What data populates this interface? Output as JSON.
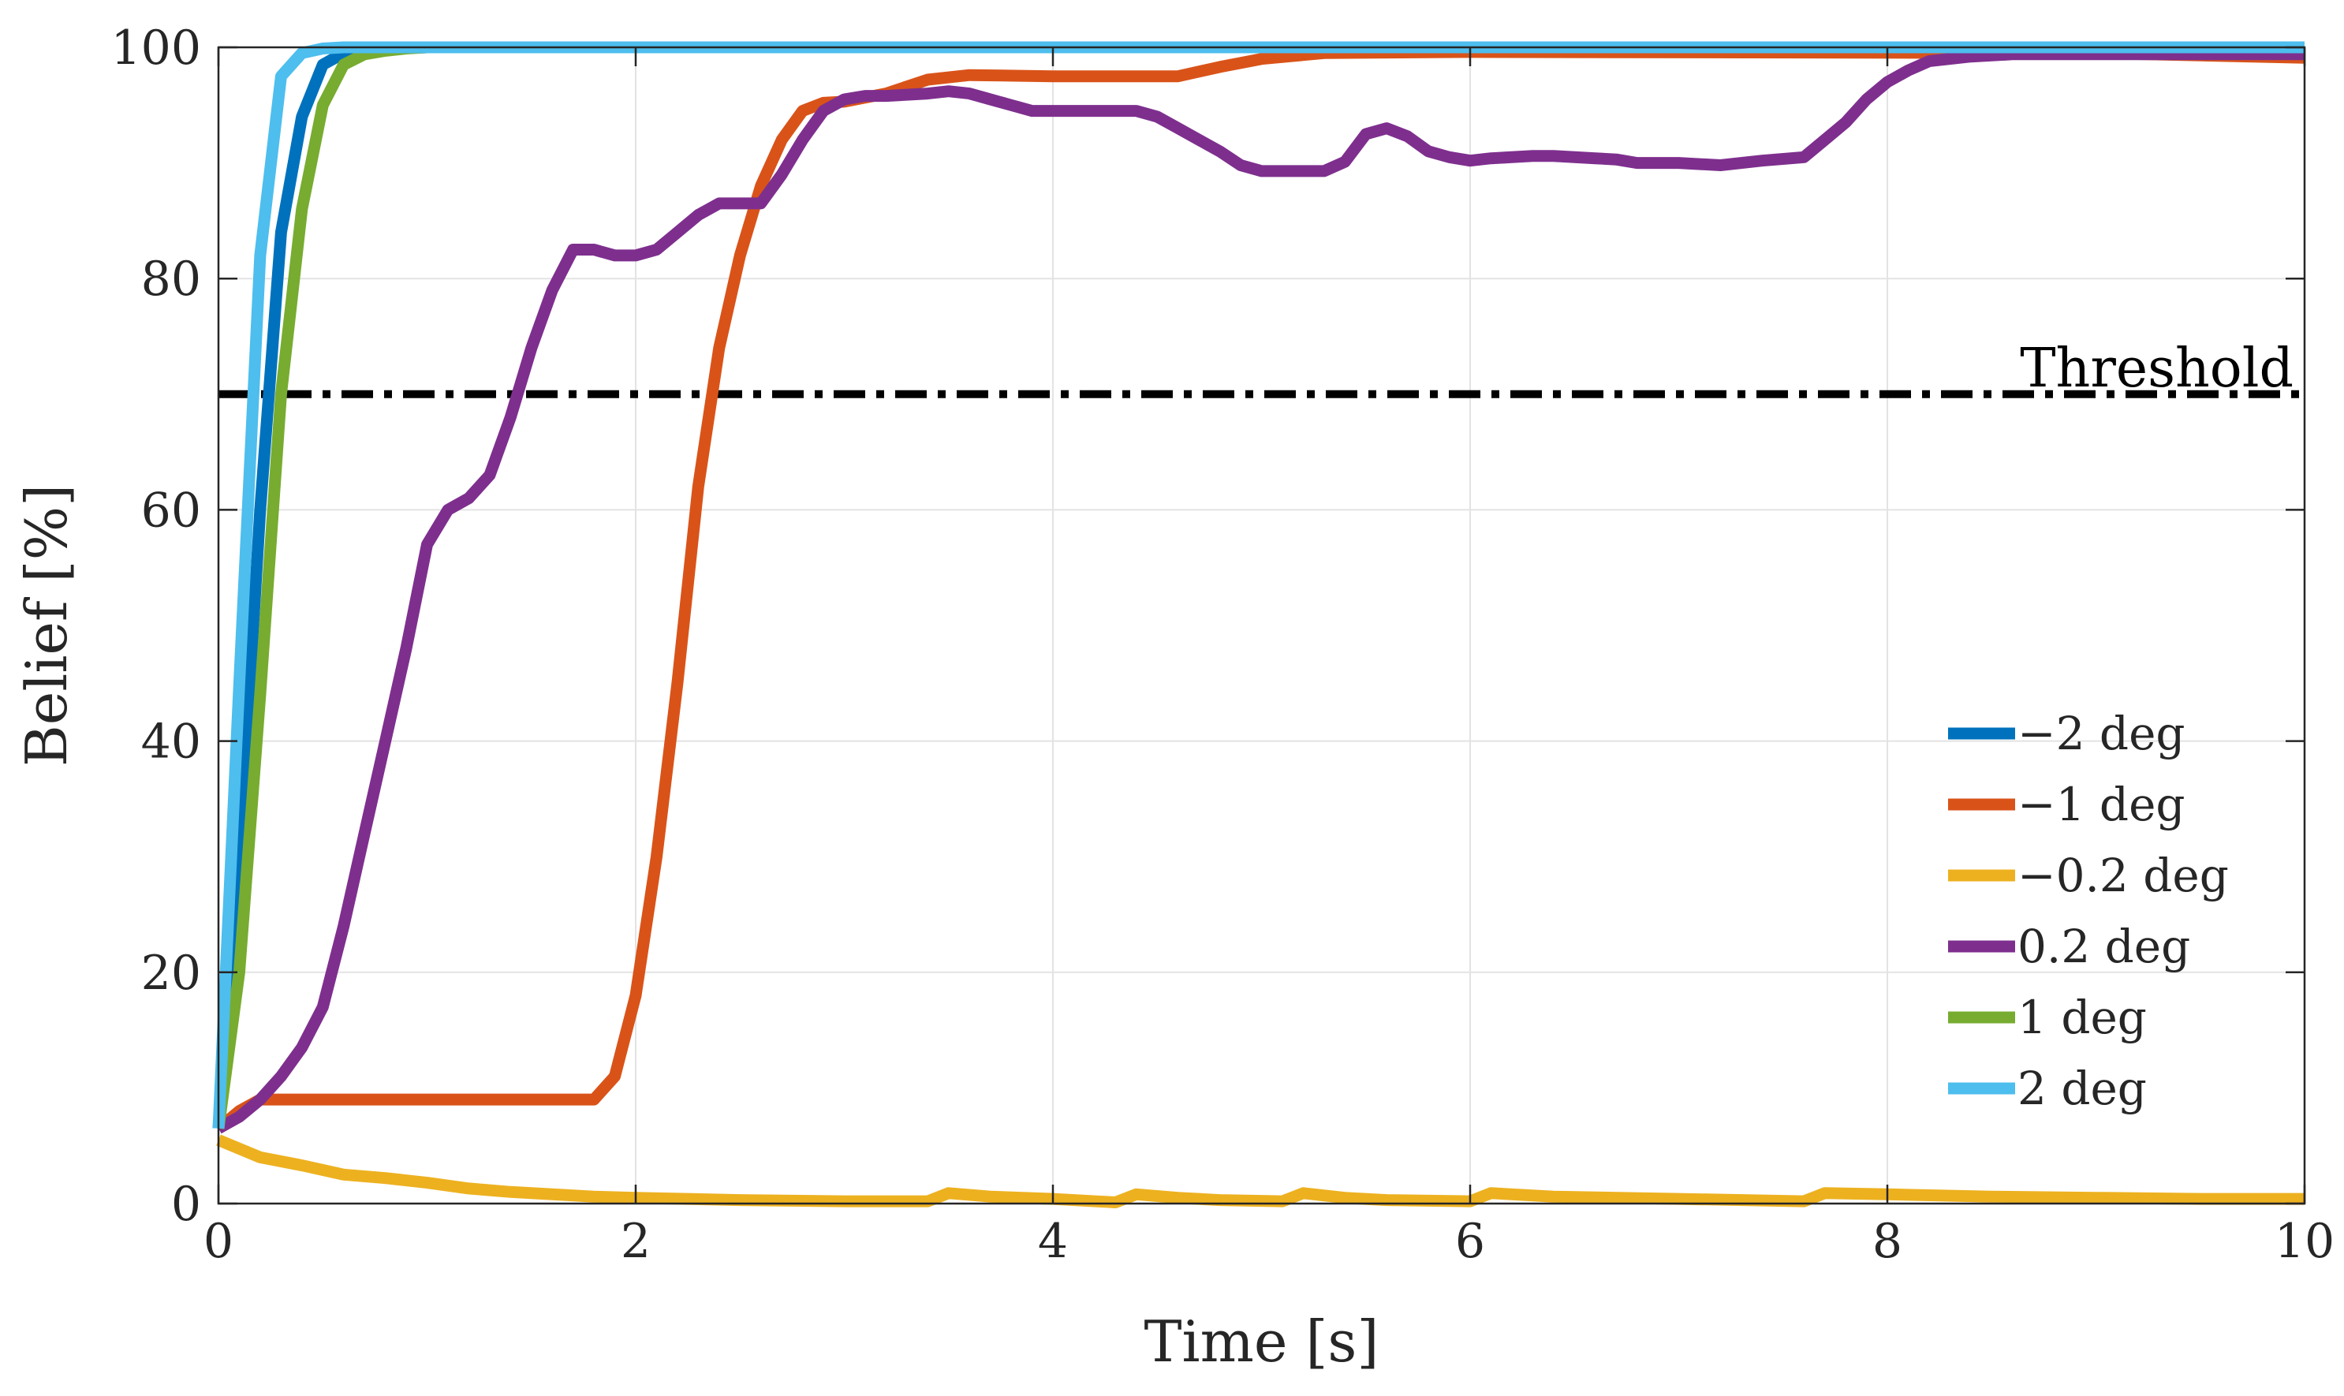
{
  "chart_data": {
    "type": "line",
    "title": "",
    "xlabel": "Time [s]",
    "ylabel": "Belief [%]",
    "xlim": [
      0,
      10
    ],
    "ylim": [
      0,
      100
    ],
    "xticks": [
      0,
      2,
      4,
      6,
      8,
      10
    ],
    "yticks": [
      0,
      20,
      40,
      60,
      80,
      100
    ],
    "grid": true,
    "legend_position": "lower-right",
    "threshold": {
      "value": 70,
      "label": "Threshold",
      "color": "#000000",
      "style": "dash-dot"
    },
    "series": [
      {
        "name": "−2 deg",
        "color": "#0072BD",
        "x": [
          0,
          0.1,
          0.2,
          0.3,
          0.4,
          0.5,
          0.6,
          0.7,
          0.8,
          1.0,
          10
        ],
        "y": [
          6.5,
          30,
          60,
          84,
          94,
          98.5,
          99.5,
          99.8,
          99.9,
          100,
          100
        ]
      },
      {
        "name": "−1 deg",
        "color": "#D95319",
        "x": [
          0,
          0.1,
          0.2,
          0.4,
          1.0,
          1.8,
          1.9,
          2.0,
          2.1,
          2.2,
          2.3,
          2.4,
          2.5,
          2.6,
          2.7,
          2.8,
          2.9,
          3.0,
          3.2,
          3.4,
          3.6,
          4.0,
          4.6,
          4.8,
          5.0,
          5.3,
          6.0,
          9.0,
          10.0
        ],
        "y": [
          6.5,
          8,
          9,
          9,
          9,
          9,
          11,
          18,
          30,
          45,
          62,
          74,
          82,
          88,
          92,
          94.5,
          95.2,
          95.3,
          96,
          97.2,
          97.6,
          97.5,
          97.5,
          98.3,
          99,
          99.5,
          99.6,
          99.5,
          99.1
        ]
      },
      {
        "name": "−0.2 deg",
        "color": "#EDB120",
        "x": [
          0,
          0.2,
          0.4,
          0.6,
          0.8,
          1.0,
          1.2,
          1.4,
          1.6,
          1.8,
          2.0,
          2.5,
          3.0,
          3.4,
          3.5,
          3.7,
          4.0,
          4.3,
          4.4,
          4.6,
          4.8,
          5.1,
          5.2,
          5.4,
          5.6,
          6.0,
          6.1,
          6.4,
          7.0,
          7.6,
          7.7,
          8.0,
          8.5,
          9.0,
          9.5,
          10.0
        ],
        "y": [
          5.5,
          4,
          3.3,
          2.5,
          2.2,
          1.8,
          1.3,
          1,
          0.8,
          0.6,
          0.5,
          0.3,
          0.2,
          0.2,
          0.9,
          0.6,
          0.4,
          0.1,
          0.8,
          0.5,
          0.3,
          0.2,
          0.9,
          0.5,
          0.3,
          0.2,
          0.9,
          0.6,
          0.4,
          0.2,
          0.9,
          0.8,
          0.6,
          0.5,
          0.4,
          0.4
        ]
      },
      {
        "name": "0.2 deg",
        "color": "#7E2F8E",
        "x": [
          0,
          0.1,
          0.2,
          0.3,
          0.4,
          0.5,
          0.6,
          0.7,
          0.8,
          0.9,
          1.0,
          1.1,
          1.2,
          1.3,
          1.4,
          1.5,
          1.6,
          1.7,
          1.8,
          1.9,
          2.0,
          2.1,
          2.2,
          2.3,
          2.4,
          2.5,
          2.6,
          2.7,
          2.8,
          2.9,
          3.0,
          3.1,
          3.2,
          3.3,
          3.4,
          3.5,
          3.6,
          3.7,
          3.8,
          3.9,
          4.0,
          4.1,
          4.2,
          4.3,
          4.4,
          4.5,
          4.6,
          4.7,
          4.8,
          4.9,
          5.0,
          5.1,
          5.2,
          5.3,
          5.4,
          5.5,
          5.6,
          5.7,
          5.8,
          5.9,
          6.0,
          6.1,
          6.2,
          6.3,
          6.4,
          6.5,
          6.6,
          6.7,
          6.8,
          6.9,
          7.0,
          7.2,
          7.4,
          7.6,
          7.7,
          7.8,
          7.9,
          8.0,
          8.1,
          8.2,
          8.4,
          8.6,
          8.7,
          9.0,
          10.0
        ],
        "y": [
          6.5,
          7.5,
          9,
          11,
          13.5,
          17,
          24,
          32,
          40,
          48,
          57,
          60,
          61,
          63,
          68,
          74,
          79,
          82.5,
          82.5,
          82,
          82,
          82.5,
          84,
          85.5,
          86.5,
          86.5,
          86.5,
          89,
          92,
          94.5,
          95.5,
          95.8,
          95.8,
          95.9,
          96,
          96.2,
          96,
          95.5,
          95,
          94.5,
          94.5,
          94.5,
          94.5,
          94.5,
          94.5,
          94,
          93,
          92,
          91,
          89.8,
          89.3,
          89.3,
          89.3,
          89.3,
          90.1,
          92.5,
          93,
          92.3,
          91,
          90.5,
          90.2,
          90.4,
          90.5,
          90.6,
          90.6,
          90.5,
          90.4,
          90.3,
          90,
          90,
          90,
          89.8,
          90.2,
          90.5,
          92,
          93.5,
          95.5,
          97,
          98,
          98.8,
          99.2,
          99.4,
          99.4,
          99.4,
          99.4
        ]
      },
      {
        "name": "1 deg",
        "color": "#77AC30",
        "x": [
          0,
          0.1,
          0.2,
          0.3,
          0.4,
          0.5,
          0.6,
          0.7,
          0.8,
          0.9,
          1.0,
          10
        ],
        "y": [
          6.5,
          20,
          44,
          70,
          86,
          95,
          98.5,
          99.4,
          99.7,
          99.9,
          100,
          100
        ]
      },
      {
        "name": "2 deg",
        "color": "#4DBEEE",
        "x": [
          0,
          0.1,
          0.2,
          0.3,
          0.4,
          0.5,
          0.6,
          0.8,
          10
        ],
        "y": [
          6.5,
          45,
          82,
          97.5,
          99.5,
          99.9,
          100,
          100,
          100
        ]
      }
    ]
  }
}
